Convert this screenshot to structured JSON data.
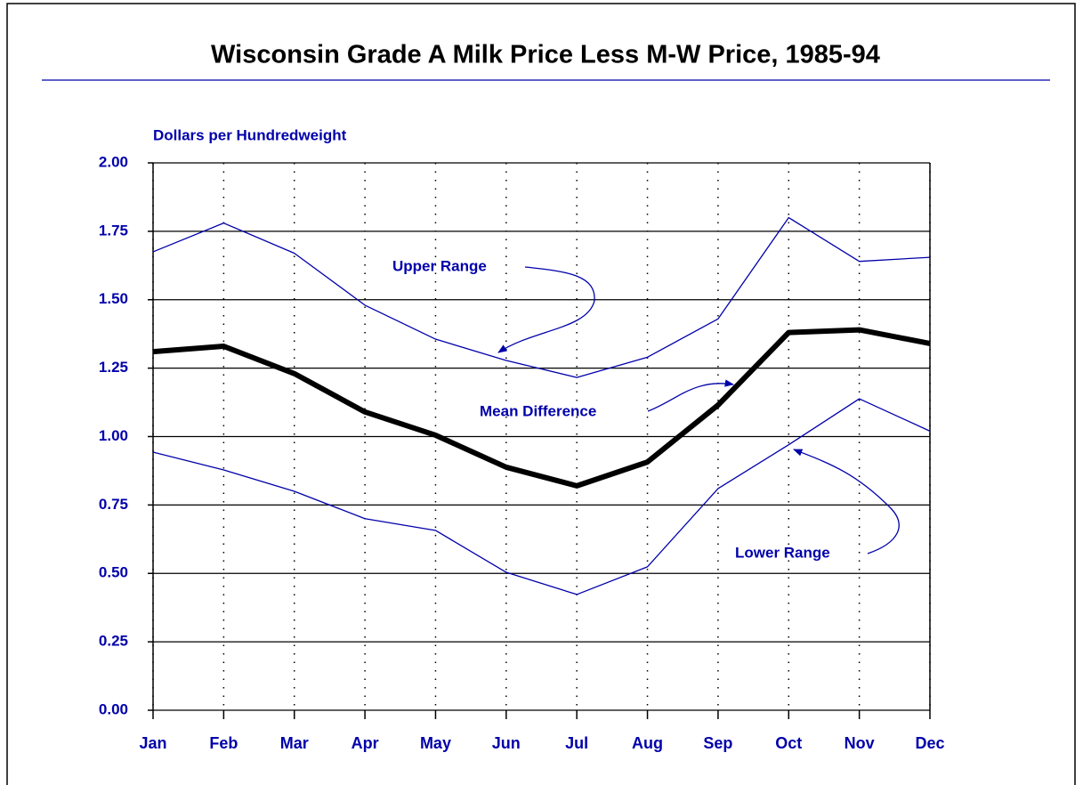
{
  "chart_data": {
    "type": "line",
    "title": "Wisconsin Grade A Milk Price Less M-W Price, 1985-94",
    "y_label": "Dollars per Hundredweight",
    "categories": [
      "Jan",
      "Feb",
      "Mar",
      "Apr",
      "May",
      "Jun",
      "Jul",
      "Aug",
      "Sep",
      "Oct",
      "Nov",
      "Dec"
    ],
    "series": [
      {
        "name": "Upper Range",
        "color": "#0000aa",
        "width": 1.3,
        "values": [
          1.675,
          1.78,
          1.67,
          1.48,
          1.356,
          1.278,
          1.216,
          1.29,
          1.43,
          1.8,
          1.64,
          1.655
        ]
      },
      {
        "name": "Mean Difference",
        "color": "#000000",
        "width": 6,
        "values": [
          1.31,
          1.33,
          1.23,
          1.09,
          1.005,
          0.888,
          0.82,
          0.907,
          1.115,
          1.38,
          1.39,
          1.34
        ]
      },
      {
        "name": "Lower Range",
        "color": "#0000aa",
        "width": 1.3,
        "values": [
          0.943,
          0.878,
          0.8,
          0.7,
          0.657,
          0.504,
          0.423,
          0.524,
          0.81,
          0.97,
          1.138,
          1.02
        ]
      }
    ],
    "ylim": [
      0,
      2
    ],
    "yticks": [
      {
        "value": 0,
        "label": "0.00"
      },
      0.25,
      {
        "value": 0.5,
        "label": "0.50"
      },
      0.75,
      {
        "value": 1,
        "label": "1.00"
      },
      1.25,
      {
        "value": 1.5,
        "label": "1.50"
      },
      1.75,
      {
        "value": 2,
        "label": "2.00"
      }
    ],
    "grid": true
  }
}
